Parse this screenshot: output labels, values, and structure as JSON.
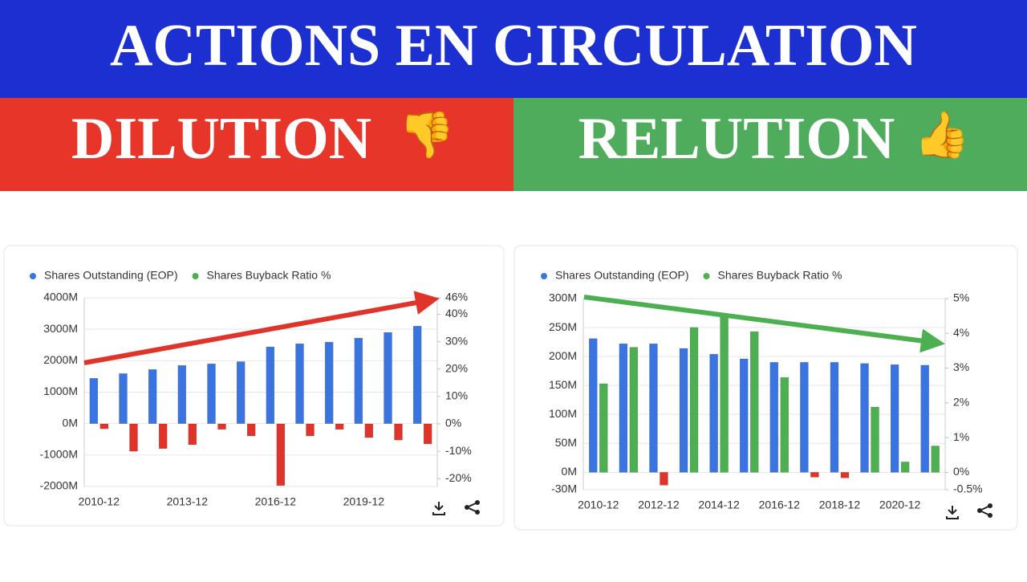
{
  "header": {
    "title": "ACTIONS EN CIRCULATION",
    "left": {
      "label": "DILUTION",
      "icon": "👎"
    },
    "right": {
      "label": "RELUTION",
      "icon": "👍"
    }
  },
  "chart_data": [
    {
      "type": "bar",
      "categories": [
        "2010-12",
        null,
        null,
        "2013-12",
        null,
        null,
        "2016-12",
        null,
        null,
        "2019-12",
        null,
        null
      ],
      "series": [
        {
          "name": "Shares Outstanding (EOP)",
          "color": "#3a74e0",
          "values": [
            1440,
            1590,
            1720,
            1850,
            1900,
            1970,
            2440,
            2540,
            2590,
            2720,
            2900,
            3100
          ]
        },
        {
          "name": "Shares Buyback Ratio %",
          "color": "#4caf50",
          "negative_color": "#e0342b",
          "axis": "y2",
          "values": [
            -1.8,
            -10,
            -9,
            -7.6,
            -2,
            -4.4,
            -22.5,
            -4.4,
            -2,
            -5,
            -5.9,
            -7.3
          ]
        }
      ],
      "ylim": [
        -2000,
        4000
      ],
      "yticks": [
        {
          "value": -2000,
          "label": "-2000M"
        },
        {
          "value": -1000,
          "label": "-1000M"
        },
        {
          "value": 0,
          "label": "0M"
        },
        {
          "value": 1000,
          "label": "1000M"
        },
        {
          "value": 2000,
          "label": "2000M"
        },
        {
          "value": 3000,
          "label": "3000M"
        },
        {
          "value": 4000,
          "label": "4000M"
        }
      ],
      "y2lim": [
        -22.85,
        46
      ],
      "y2ticks": [
        {
          "value": -20,
          "label": "-20%"
        },
        {
          "value": -10,
          "label": "-10%"
        },
        {
          "value": 0,
          "label": "0%"
        },
        {
          "value": 10,
          "label": "10%"
        },
        {
          "value": 20,
          "label": "20%"
        },
        {
          "value": 30,
          "label": "30%"
        },
        {
          "value": 40,
          "label": "40%"
        },
        {
          "value": 46,
          "label": "46%"
        }
      ],
      "grid": true
    },
    {
      "type": "bar",
      "categories": [
        "2010-12",
        null,
        "2012-12",
        null,
        "2014-12",
        null,
        "2016-12",
        null,
        "2018-12",
        null,
        "2020-12",
        null
      ],
      "series": [
        {
          "name": "Shares Outstanding (EOP)",
          "color": "#3a74e0",
          "values": [
            231,
            222,
            222,
            214,
            204,
            196,
            190,
            190,
            190,
            188,
            186,
            185
          ]
        },
        {
          "name": "Shares Buyback Ratio %",
          "color": "#4caf50",
          "negative_color": "#e0342b",
          "axis": "y2",
          "values": [
            2.55,
            3.6,
            -0.37,
            4.17,
            4.47,
            4.05,
            2.73,
            -0.14,
            -0.16,
            1.88,
            0.3,
            0.76
          ]
        }
      ],
      "ylim": [
        -30,
        300
      ],
      "yticks": [
        {
          "value": -30,
          "label": "-30M"
        },
        {
          "value": 0,
          "label": "0M"
        },
        {
          "value": 50,
          "label": "50M"
        },
        {
          "value": 100,
          "label": "100M"
        },
        {
          "value": 150,
          "label": "150M"
        },
        {
          "value": 200,
          "label": "200M"
        },
        {
          "value": 250,
          "label": "250M"
        },
        {
          "value": 300,
          "label": "300M"
        }
      ],
      "y2lim": [
        -0.5,
        5
      ],
      "y2ticks": [
        {
          "value": -0.5,
          "label": "-0.5%"
        },
        {
          "value": 0,
          "label": "0%"
        },
        {
          "value": 1,
          "label": "1%"
        },
        {
          "value": 2,
          "label": "2%"
        },
        {
          "value": 3,
          "label": "3%"
        },
        {
          "value": 4,
          "label": "4%"
        },
        {
          "value": 5,
          "label": "5%"
        }
      ],
      "grid": true
    }
  ]
}
